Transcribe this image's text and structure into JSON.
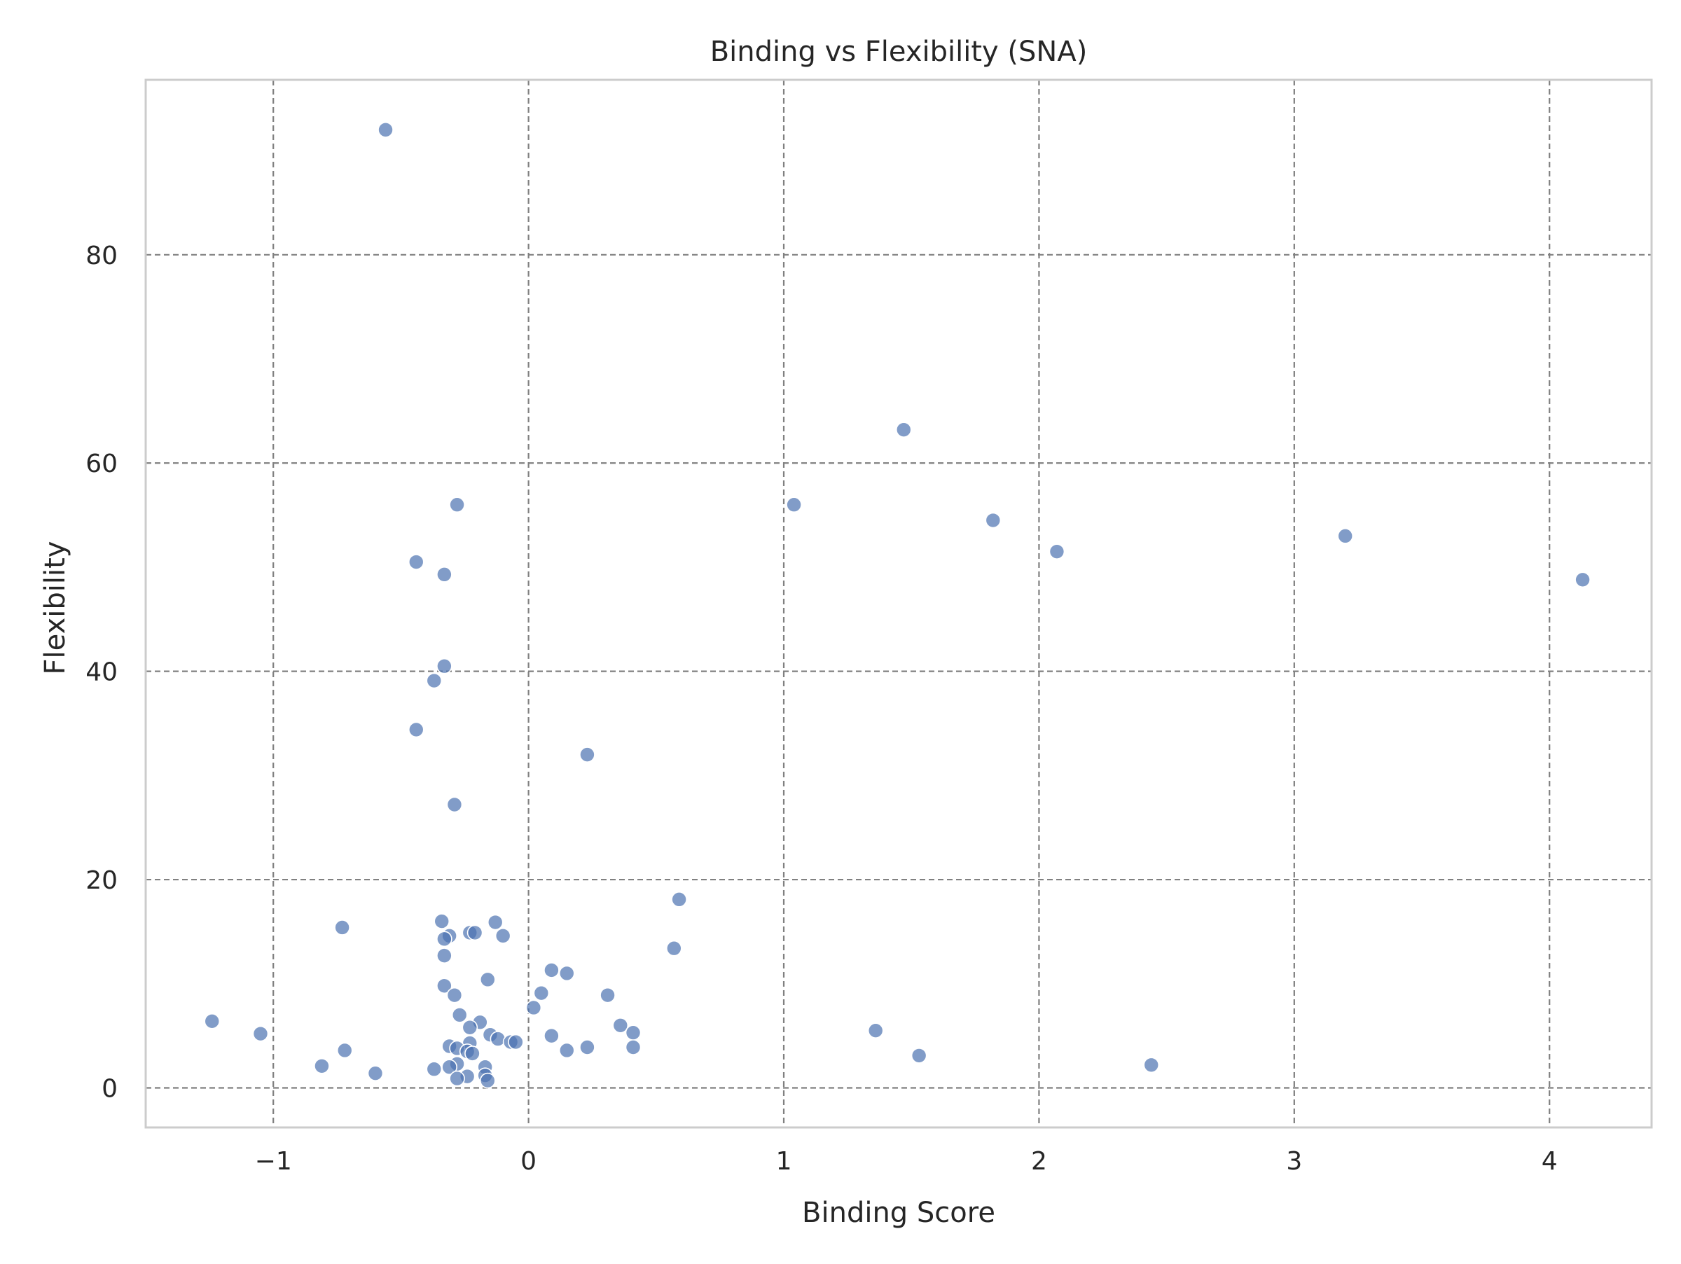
{
  "chart_data": {
    "type": "scatter",
    "title": "Binding vs Flexibility (SNA)",
    "xlabel": "Binding Score",
    "ylabel": "Flexibility",
    "xlim": [
      -1.5,
      4.4
    ],
    "ylim": [
      -3.8,
      96.8
    ],
    "x_ticks": [
      -1,
      0,
      1,
      2,
      3,
      4
    ],
    "x_tick_labels": [
      "−1",
      "0",
      "1",
      "2",
      "3",
      "4"
    ],
    "y_ticks": [
      0,
      20,
      40,
      60,
      80
    ],
    "y_tick_labels": [
      "0",
      "20",
      "40",
      "60",
      "80"
    ],
    "grid": true,
    "grid_style": "dashed",
    "point_color": "#4c72b0",
    "frame_color": "#cccccc",
    "grid_color": "#808080",
    "points": [
      {
        "x": -0.56,
        "y": 92.0
      },
      {
        "x": 1.47,
        "y": 63.2
      },
      {
        "x": -0.28,
        "y": 56.0
      },
      {
        "x": 1.04,
        "y": 56.0
      },
      {
        "x": 1.82,
        "y": 54.5
      },
      {
        "x": 3.2,
        "y": 53.0
      },
      {
        "x": 2.07,
        "y": 51.5
      },
      {
        "x": 4.13,
        "y": 48.8
      },
      {
        "x": -0.44,
        "y": 50.5
      },
      {
        "x": -0.33,
        "y": 49.3
      },
      {
        "x": -0.33,
        "y": 40.5
      },
      {
        "x": -0.37,
        "y": 39.1
      },
      {
        "x": -0.44,
        "y": 34.4
      },
      {
        "x": 0.23,
        "y": 32.0
      },
      {
        "x": -0.29,
        "y": 27.2
      },
      {
        "x": 0.59,
        "y": 18.1
      },
      {
        "x": -0.73,
        "y": 15.4
      },
      {
        "x": -0.34,
        "y": 16.0
      },
      {
        "x": -0.13,
        "y": 15.9
      },
      {
        "x": -0.23,
        "y": 14.9
      },
      {
        "x": -0.21,
        "y": 14.9
      },
      {
        "x": -0.1,
        "y": 14.6
      },
      {
        "x": -0.31,
        "y": 14.6
      },
      {
        "x": -0.33,
        "y": 14.3
      },
      {
        "x": 0.57,
        "y": 13.4
      },
      {
        "x": -0.33,
        "y": 12.7
      },
      {
        "x": 0.09,
        "y": 11.3
      },
      {
        "x": 0.15,
        "y": 11.0
      },
      {
        "x": -0.16,
        "y": 10.4
      },
      {
        "x": -0.33,
        "y": 9.8
      },
      {
        "x": 0.05,
        "y": 9.1
      },
      {
        "x": -0.29,
        "y": 8.9
      },
      {
        "x": 0.31,
        "y": 8.9
      },
      {
        "x": 0.02,
        "y": 7.7
      },
      {
        "x": -0.27,
        "y": 7.0
      },
      {
        "x": -1.24,
        "y": 6.4
      },
      {
        "x": -0.19,
        "y": 6.3
      },
      {
        "x": 0.36,
        "y": 6.0
      },
      {
        "x": -0.23,
        "y": 5.8
      },
      {
        "x": 1.36,
        "y": 5.5
      },
      {
        "x": -1.05,
        "y": 5.2
      },
      {
        "x": 0.41,
        "y": 5.3
      },
      {
        "x": -0.15,
        "y": 5.1
      },
      {
        "x": 0.09,
        "y": 5.0
      },
      {
        "x": -0.12,
        "y": 4.7
      },
      {
        "x": -0.07,
        "y": 4.4
      },
      {
        "x": -0.05,
        "y": 4.4
      },
      {
        "x": -0.23,
        "y": 4.3
      },
      {
        "x": -0.31,
        "y": 4.0
      },
      {
        "x": 0.41,
        "y": 3.9
      },
      {
        "x": 0.23,
        "y": 3.9
      },
      {
        "x": -0.28,
        "y": 3.8
      },
      {
        "x": -0.72,
        "y": 3.6
      },
      {
        "x": 0.15,
        "y": 3.6
      },
      {
        "x": -0.24,
        "y": 3.5
      },
      {
        "x": -0.22,
        "y": 3.3
      },
      {
        "x": 1.53,
        "y": 3.1
      },
      {
        "x": 2.44,
        "y": 2.2
      },
      {
        "x": -0.28,
        "y": 2.3
      },
      {
        "x": -0.81,
        "y": 2.1
      },
      {
        "x": -0.31,
        "y": 2.0
      },
      {
        "x": -0.17,
        "y": 2.0
      },
      {
        "x": -0.37,
        "y": 1.8
      },
      {
        "x": -0.6,
        "y": 1.4
      },
      {
        "x": -0.17,
        "y": 1.2
      },
      {
        "x": -0.24,
        "y": 1.1
      },
      {
        "x": -0.28,
        "y": 0.9
      },
      {
        "x": -0.16,
        "y": 0.7
      }
    ]
  }
}
